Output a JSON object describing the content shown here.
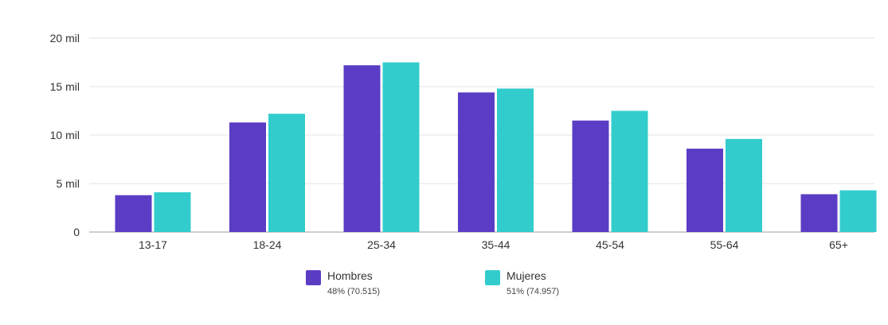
{
  "chart_data": {
    "type": "bar",
    "categories": [
      "13-17",
      "18-24",
      "25-34",
      "35-44",
      "45-54",
      "55-64",
      "65+"
    ],
    "series": [
      {
        "name": "Hombres",
        "sub": "48% (70.515)",
        "color": "#5b3cc4",
        "values": [
          3800,
          11300,
          17200,
          14400,
          11500,
          8600,
          3900
        ]
      },
      {
        "name": "Mujeres",
        "sub": "51% (74.957)",
        "color": "#33cccc",
        "values": [
          4100,
          12200,
          17500,
          14800,
          12500,
          9600,
          4300
        ]
      }
    ],
    "yticks": [
      0,
      5000,
      10000,
      15000,
      20000
    ],
    "ytick_labels": [
      "0",
      "5 mil",
      "10 mil",
      "15 mil",
      "20 mil"
    ],
    "ylim": [
      0,
      20000
    ],
    "grid": true,
    "legend_placement": "bottom-center"
  }
}
